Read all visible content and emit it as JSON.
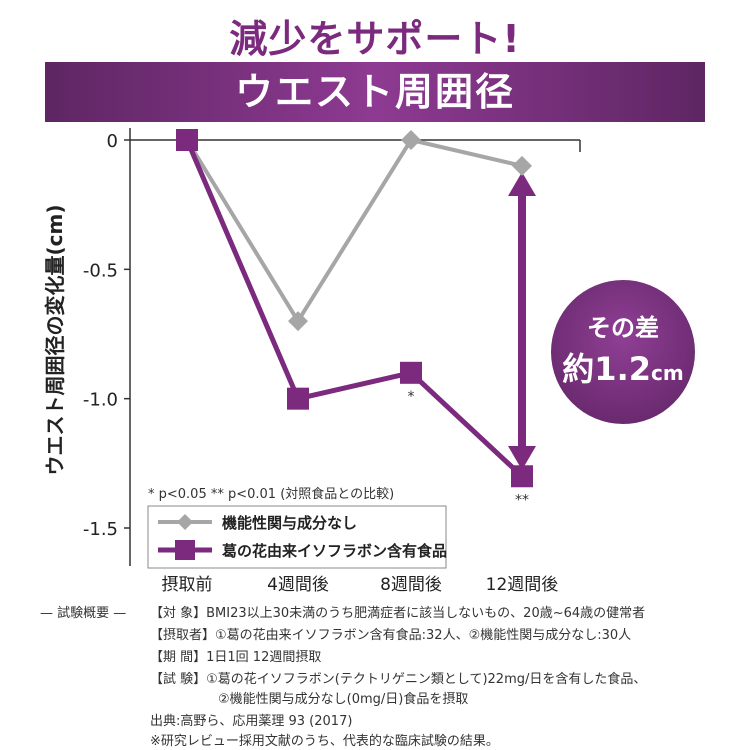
{
  "headline": "減少をサポート!",
  "banner_title": "ウエスト周囲径",
  "chart_data": {
    "type": "line",
    "ylabel": "ウエスト周囲径の変化量(cm)",
    "xlabel": "",
    "categories": [
      "摂取前",
      "4週間後",
      "8週間後",
      "12週間後"
    ],
    "ylim": [
      -1.5,
      0
    ],
    "yticks": [
      "0",
      "-0.5",
      "-1.0",
      "-1.5"
    ],
    "series": [
      {
        "name": "機能性関与成分なし",
        "values": [
          0,
          -0.7,
          0,
          -0.1
        ],
        "color": "#a6a6a6",
        "marker": "diamond"
      },
      {
        "name": "葛の花由来イソフラボン含有食品",
        "values": [
          0,
          -1.0,
          -0.9,
          -1.3
        ],
        "color": "#7b2a7e",
        "marker": "square"
      }
    ],
    "significance": [
      "",
      "",
      "*",
      "**"
    ],
    "note": "* p<0.05 ** p<0.01 (対照食品との比較)",
    "difference": {
      "line1": "その差",
      "line2_num": "約1.2",
      "line2_unit": "cm"
    },
    "grid": false,
    "legend": "bottom-left"
  },
  "footnotes": {
    "label": "— 試験概要 —",
    "target": "【対 象】BMI23以上30未満のうち肥満症者に該当しないもの、20歳~64歳の健常者",
    "takers": "【摂取者】①葛の花由来イソフラボン含有食品:32人、②機能性関与成分なし:30人",
    "period": "【期 間】1日1回 12週間摂取",
    "trial1": "【試 験】①葛の花イソフラボン(テクトリゲニン類として)22mg/日を含有した食品、",
    "trial2": "②機能性関与成分なし(0mg/日)食品を摂取",
    "source": "出典:高野ら、応用薬理 93 (2017)",
    "disclaimer": "※研究レビュー採用文献のうち、代表的な臨床試験の結果。"
  },
  "colors": {
    "accent": "#7b2a7e",
    "control": "#a6a6a6"
  }
}
